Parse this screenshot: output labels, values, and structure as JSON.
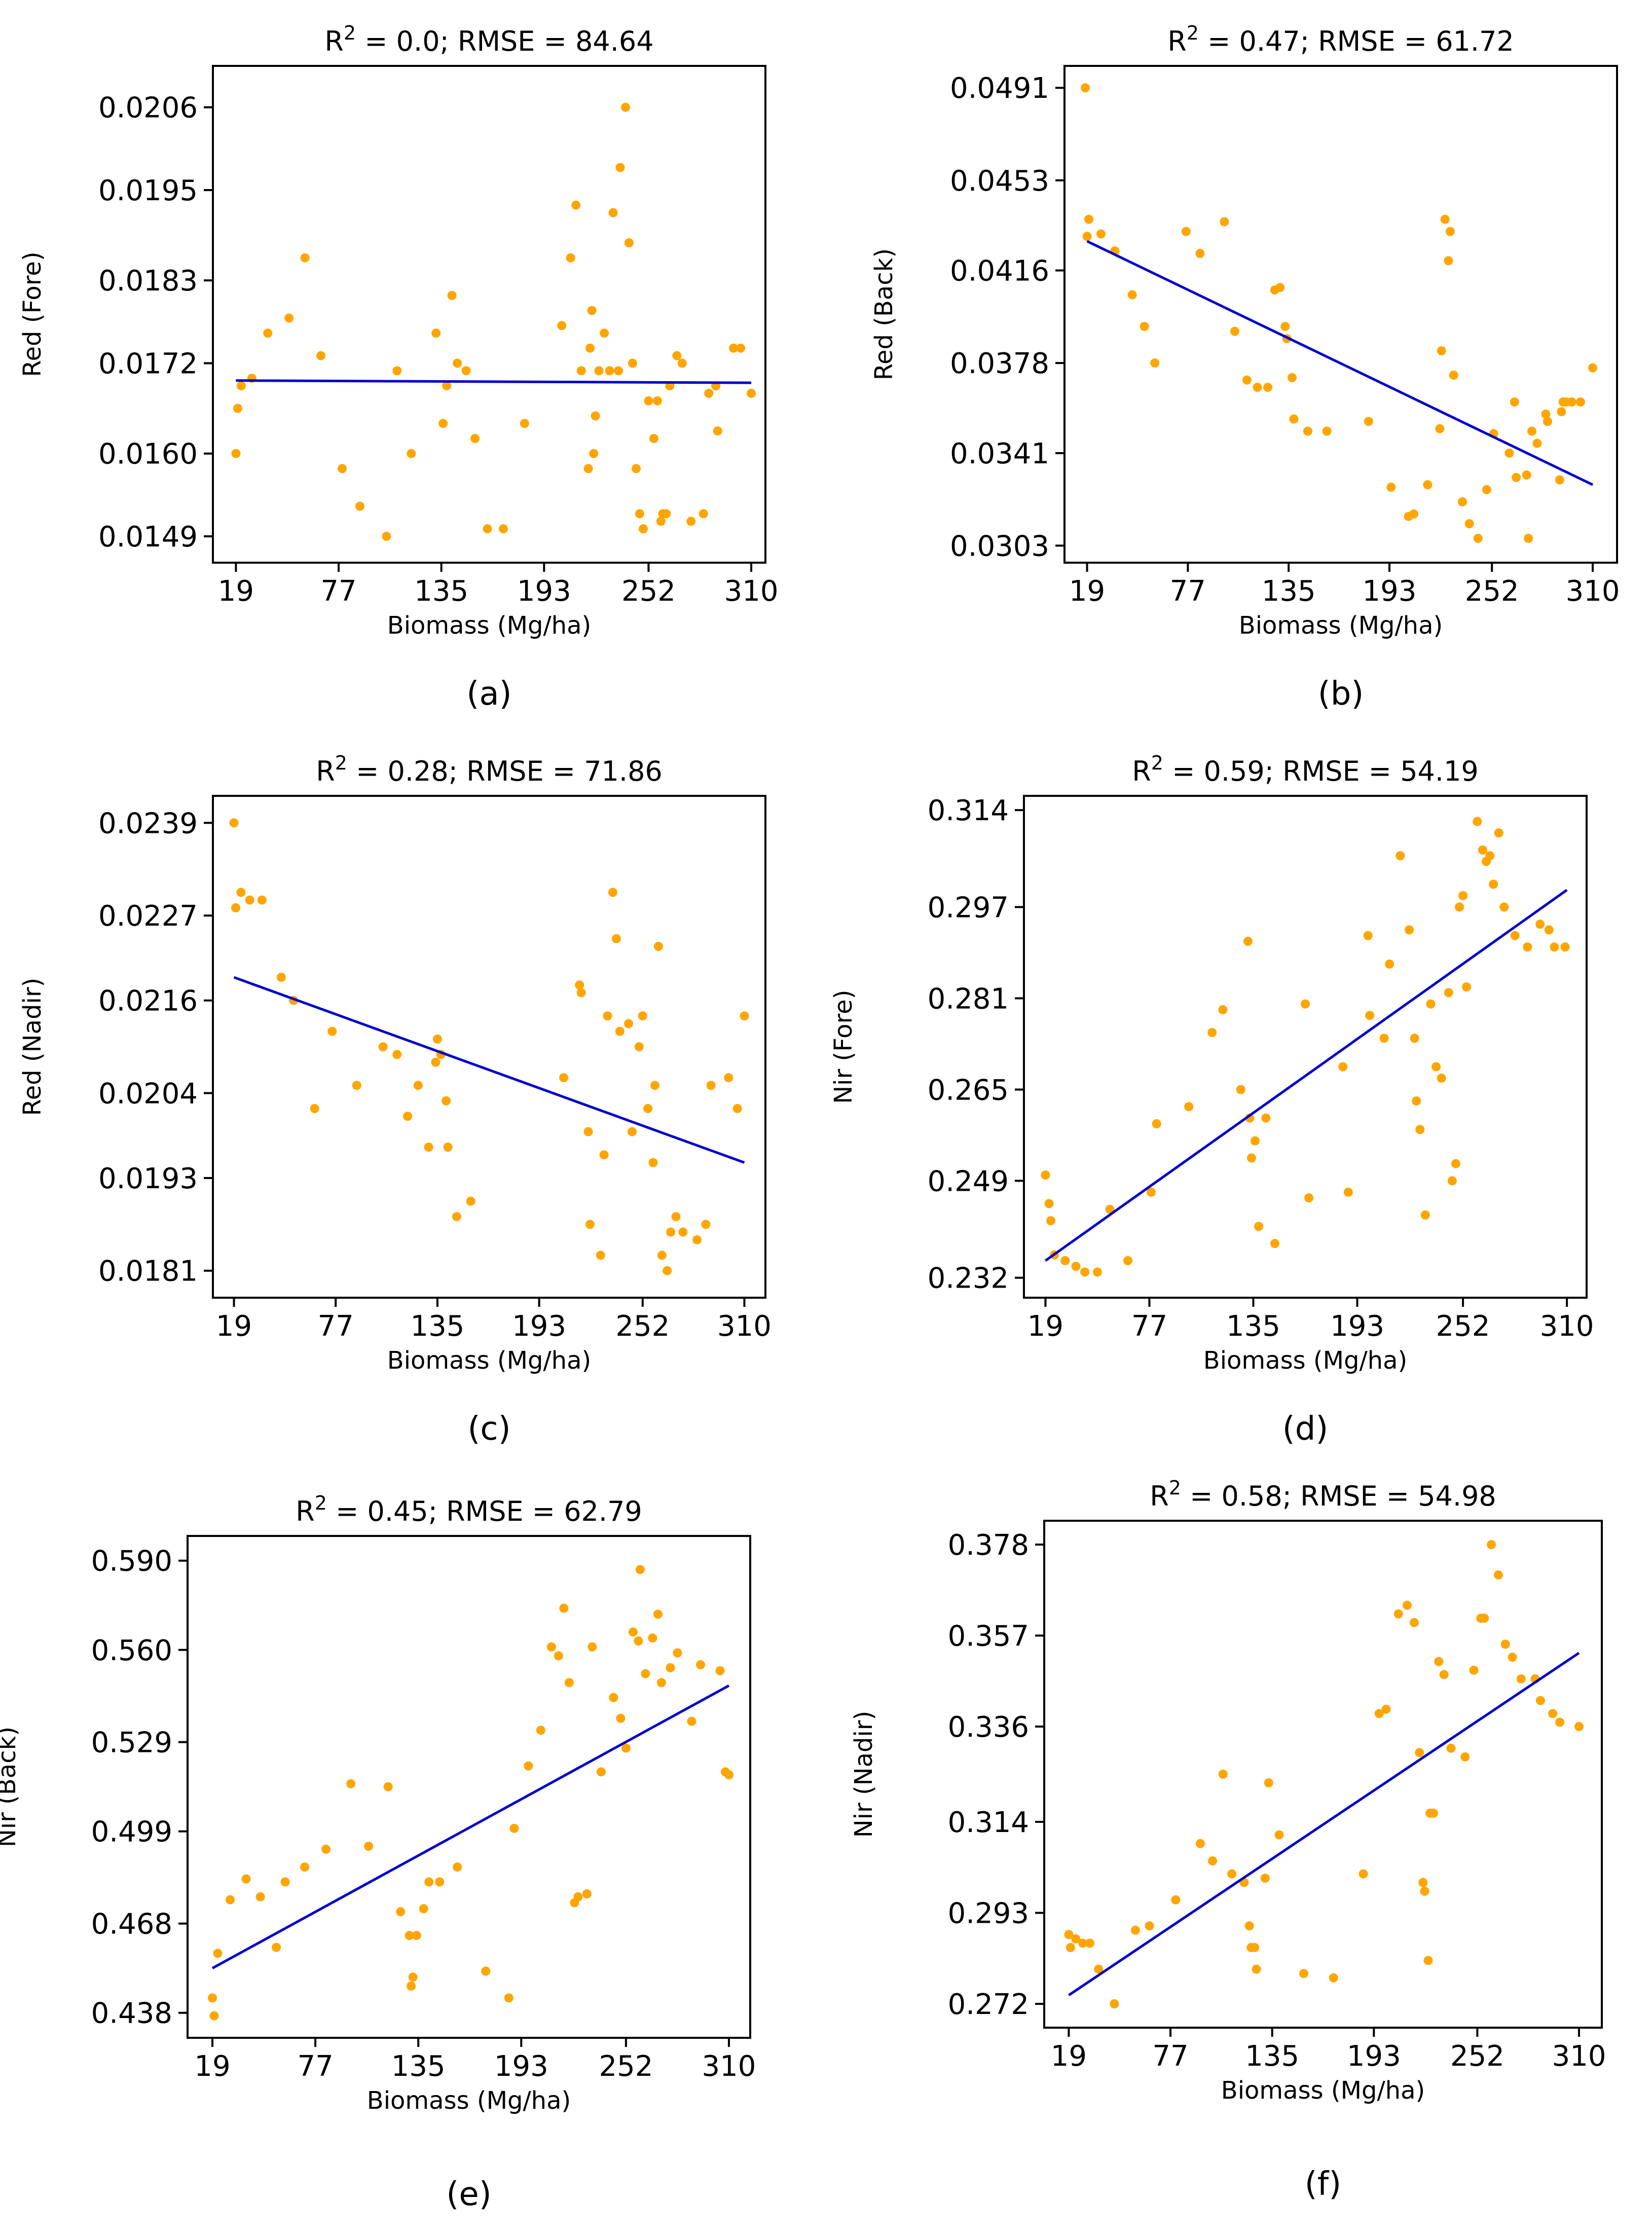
{
  "colors": {
    "point": "#FFA500",
    "fit_line": "#0000CC",
    "axes": "#000000",
    "background": "#FFFFFF"
  },
  "chart_data": [
    {
      "type": "scatter",
      "panel_label": "(a)",
      "title": {
        "r2_label": "R",
        "r2_sup": "2",
        "stats": " = 0.0; RMSE = 84.64"
      },
      "xlabel": "Biomass (Mg/ha)",
      "ylabel": "Red (Fore)",
      "xlim": [
        6,
        318
      ],
      "ylim": [
        0.01455,
        0.02115
      ],
      "xticks": [
        19,
        77,
        135,
        193,
        252,
        310
      ],
      "xtick_labels": [
        "19",
        "77",
        "135",
        "193",
        "252",
        "310"
      ],
      "yticks": [
        0.0149,
        0.016,
        0.0172,
        0.0183,
        0.0195,
        0.0206
      ],
      "ytick_labels": [
        "0.0149",
        "0.0160",
        "0.0172",
        "0.0183",
        "0.0195",
        "0.0206"
      ],
      "fit_line": {
        "x": [
          19,
          310
        ],
        "y": [
          0.01697,
          0.01694
        ]
      },
      "points": {
        "x": [
          19,
          20,
          22,
          28,
          37,
          49,
          58,
          67,
          79,
          89,
          104,
          110,
          118,
          132,
          136,
          138,
          141,
          144,
          149,
          154,
          161,
          170,
          182,
          203,
          208,
          211,
          214,
          218,
          219,
          220,
          221,
          222,
          224,
          227,
          230,
          232,
          235,
          236,
          239,
          241,
          243,
          245,
          247,
          249,
          252,
          255,
          257,
          259,
          260,
          262,
          264,
          268,
          271,
          276,
          283,
          286,
          290,
          291,
          300,
          304,
          310
        ],
        "y": [
          0.016,
          0.0166,
          0.0169,
          0.017,
          0.0176,
          0.0178,
          0.0186,
          0.0173,
          0.0158,
          0.0153,
          0.0149,
          0.0171,
          0.016,
          0.0176,
          0.0164,
          0.0169,
          0.0181,
          0.0172,
          0.0171,
          0.0162,
          0.015,
          0.015,
          0.0164,
          0.0177,
          0.0186,
          0.0193,
          0.0171,
          0.0158,
          0.0174,
          0.0179,
          0.016,
          0.0165,
          0.0171,
          0.0176,
          0.0171,
          0.0192,
          0.0171,
          0.0198,
          0.0206,
          0.0188,
          0.0172,
          0.0158,
          0.0152,
          0.015,
          0.0167,
          0.0162,
          0.0167,
          0.0151,
          0.0152,
          0.0152,
          0.0169,
          0.0173,
          0.0172,
          0.0151,
          0.0152,
          0.0168,
          0.0169,
          0.0163,
          0.0174,
          0.0174,
          0.0168
        ]
      }
    },
    {
      "type": "scatter",
      "panel_label": "(b)",
      "title": {
        "r2_label": "R",
        "r2_sup": "2",
        "stats": " = 0.47; RMSE = 61.72"
      },
      "xlabel": "Biomass (Mg/ha)",
      "ylabel": "Red (Back)",
      "xlim": [
        6,
        324
      ],
      "ylim": [
        0.0296,
        0.05
      ],
      "xticks": [
        19,
        77,
        135,
        193,
        252,
        310
      ],
      "xtick_labels": [
        "19",
        "77",
        "135",
        "193",
        "252",
        "310"
      ],
      "yticks": [
        0.0303,
        0.0341,
        0.0378,
        0.0416,
        0.0453,
        0.0491
      ],
      "ytick_labels": [
        "0.0303",
        "0.0341",
        "0.0378",
        "0.0416",
        "0.0453",
        "0.0491"
      ],
      "fit_line": {
        "x": [
          19,
          310
        ],
        "y": [
          0.0428,
          0.0328
        ]
      },
      "points": {
        "x": [
          18,
          19,
          20,
          27,
          35,
          45,
          52,
          58,
          76,
          84,
          98,
          104,
          111,
          117,
          123,
          127,
          130,
          133,
          134,
          137,
          138,
          146,
          157,
          181,
          194,
          204,
          207,
          215,
          222,
          223,
          225,
          227,
          228,
          230,
          235,
          239,
          244,
          249,
          253,
          262,
          265,
          266,
          272,
          273,
          275,
          278,
          283,
          284,
          291,
          292,
          293,
          295,
          298,
          303,
          310
        ],
        "y": [
          0.0491,
          0.043,
          0.0437,
          0.0431,
          0.0424,
          0.0406,
          0.0393,
          0.0378,
          0.0432,
          0.0423,
          0.0436,
          0.0391,
          0.0371,
          0.0368,
          0.0368,
          0.0408,
          0.0409,
          0.0393,
          0.0388,
          0.0372,
          0.0355,
          0.035,
          0.035,
          0.0354,
          0.0327,
          0.0315,
          0.0316,
          0.0328,
          0.0351,
          0.0383,
          0.0437,
          0.042,
          0.0432,
          0.0373,
          0.0321,
          0.0312,
          0.0306,
          0.0326,
          0.0349,
          0.0341,
          0.0362,
          0.0331,
          0.0332,
          0.0306,
          0.035,
          0.0345,
          0.0357,
          0.0354,
          0.033,
          0.0358,
          0.0362,
          0.0362,
          0.0362,
          0.0362,
          0.0376
        ]
      }
    },
    {
      "type": "scatter",
      "panel_label": "(c)",
      "title": {
        "r2_label": "R",
        "r2_sup": "2",
        "stats": " = 0.28; RMSE = 71.86"
      },
      "xlabel": "Biomass (Mg/ha)",
      "ylabel": "Red (Nadir)",
      "xlim": [
        7,
        322
      ],
      "ylim": [
        0.01775,
        0.02425
      ],
      "xticks": [
        19,
        77,
        135,
        193,
        252,
        310
      ],
      "xtick_labels": [
        "19",
        "77",
        "135",
        "193",
        "252",
        "310"
      ],
      "yticks": [
        0.0181,
        0.0193,
        0.0204,
        0.0216,
        0.0227,
        0.0239
      ],
      "ytick_labels": [
        "0.0181",
        "0.0193",
        "0.0204",
        "0.0216",
        "0.0227",
        "0.0239"
      ],
      "fit_line": {
        "x": [
          19,
          310
        ],
        "y": [
          0.0219,
          0.0195
        ]
      },
      "points": {
        "x": [
          19,
          20,
          23,
          28,
          35,
          46,
          53,
          65,
          75,
          89,
          104,
          112,
          118,
          124,
          130,
          134,
          135,
          137,
          140,
          141,
          146,
          154,
          207,
          216,
          217,
          221,
          222,
          228,
          230,
          232,
          235,
          237,
          239,
          244,
          246,
          250,
          252,
          255,
          258,
          259,
          261,
          263,
          266,
          268,
          271,
          275,
          283,
          288,
          291,
          301,
          306,
          310
        ],
        "y": [
          0.0239,
          0.0228,
          0.023,
          0.0229,
          0.0229,
          0.0219,
          0.0216,
          0.0202,
          0.0212,
          0.0205,
          0.021,
          0.0209,
          0.0201,
          0.0205,
          0.0197,
          0.0208,
          0.0211,
          0.0209,
          0.0203,
          0.0197,
          0.0188,
          0.019,
          0.0206,
          0.0218,
          0.0217,
          0.0199,
          0.0187,
          0.0183,
          0.0196,
          0.0214,
          0.023,
          0.0224,
          0.0212,
          0.0213,
          0.0199,
          0.021,
          0.0214,
          0.0202,
          0.0195,
          0.0205,
          0.0223,
          0.0183,
          0.0181,
          0.0186,
          0.0188,
          0.0186,
          0.0185,
          0.0187,
          0.0205,
          0.0206,
          0.0202,
          0.0214
        ]
      }
    },
    {
      "type": "scatter",
      "panel_label": "(d)",
      "title": {
        "r2_label": "R",
        "r2_sup": "2",
        "stats": " = 0.59; RMSE = 54.19"
      },
      "xlabel": "Biomass (Mg/ha)",
      "ylabel": "Nir (Fore)",
      "xlim": [
        7,
        321
      ],
      "ylim": [
        0.2285,
        0.3165
      ],
      "xticks": [
        19,
        77,
        135,
        193,
        252,
        310
      ],
      "xtick_labels": [
        "19",
        "77",
        "135",
        "193",
        "252",
        "310"
      ],
      "yticks": [
        0.232,
        0.249,
        0.265,
        0.281,
        0.297,
        0.314
      ],
      "ytick_labels": [
        "0.232",
        "0.249",
        "0.265",
        "0.281",
        "0.297",
        "0.314"
      ],
      "fit_line": {
        "x": [
          19,
          310
        ],
        "y": [
          0.235,
          0.3
        ]
      },
      "points": {
        "x": [
          19,
          21,
          22,
          24,
          30,
          36,
          41,
          48,
          55,
          65,
          78,
          81,
          99,
          112,
          118,
          128,
          132,
          133,
          134,
          136,
          138,
          142,
          147,
          164,
          166,
          185,
          188,
          199,
          200,
          208,
          211,
          217,
          222,
          225,
          226,
          228,
          231,
          234,
          237,
          240,
          244,
          246,
          248,
          250,
          252,
          254,
          260,
          263,
          265,
          267,
          269,
          272,
          275,
          281,
          288,
          295,
          300,
          303,
          309
        ],
        "y": [
          0.25,
          0.245,
          0.242,
          0.236,
          0.235,
          0.234,
          0.233,
          0.233,
          0.244,
          0.235,
          0.247,
          0.259,
          0.262,
          0.275,
          0.279,
          0.265,
          0.291,
          0.26,
          0.253,
          0.256,
          0.241,
          0.26,
          0.238,
          0.28,
          0.246,
          0.269,
          0.247,
          0.292,
          0.278,
          0.274,
          0.287,
          0.306,
          0.293,
          0.274,
          0.263,
          0.258,
          0.243,
          0.28,
          0.269,
          0.267,
          0.282,
          0.249,
          0.252,
          0.297,
          0.299,
          0.283,
          0.312,
          0.307,
          0.305,
          0.306,
          0.301,
          0.31,
          0.297,
          0.292,
          0.29,
          0.294,
          0.293,
          0.29,
          0.29
        ]
      }
    },
    {
      "type": "scatter",
      "panel_label": "(e)",
      "title": {
        "r2_label": "R",
        "r2_sup": "2",
        "stats": " = 0.45; RMSE = 62.79"
      },
      "xlabel": "Biomass (Mg/ha)",
      "ylabel": "Nir (Back)",
      "xlim": [
        5,
        322
      ],
      "ylim": [
        0.4296,
        0.5983
      ],
      "xticks": [
        19,
        77,
        135,
        193,
        252,
        310
      ],
      "xtick_labels": [
        "19",
        "77",
        "135",
        "193",
        "252",
        "310"
      ],
      "yticks": [
        0.438,
        0.468,
        0.499,
        0.529,
        0.56,
        0.59
      ],
      "ytick_labels": [
        "0.438",
        "0.468",
        "0.499",
        "0.529",
        "0.560",
        "0.590"
      ],
      "fit_line": {
        "x": [
          19,
          310
        ],
        "y": [
          0.453,
          0.548
        ]
      },
      "points": {
        "x": [
          19,
          20,
          22,
          29,
          38,
          46,
          55,
          60,
          71,
          83,
          97,
          107,
          118,
          125,
          130,
          131,
          132,
          134,
          138,
          141,
          147,
          157,
          173,
          186,
          189,
          197,
          204,
          210,
          214,
          217,
          220,
          223,
          225,
          230,
          233,
          238,
          245,
          249,
          252,
          256,
          259,
          260,
          263,
          267,
          270,
          272,
          277,
          281,
          289,
          294,
          305,
          308,
          310
        ],
        "y": [
          0.443,
          0.437,
          0.458,
          0.476,
          0.483,
          0.477,
          0.46,
          0.482,
          0.487,
          0.493,
          0.515,
          0.494,
          0.514,
          0.472,
          0.464,
          0.447,
          0.45,
          0.464,
          0.473,
          0.482,
          0.482,
          0.487,
          0.452,
          0.443,
          0.5,
          0.521,
          0.533,
          0.561,
          0.558,
          0.574,
          0.549,
          0.475,
          0.477,
          0.478,
          0.561,
          0.519,
          0.544,
          0.537,
          0.527,
          0.566,
          0.563,
          0.587,
          0.552,
          0.564,
          0.572,
          0.549,
          0.554,
          0.559,
          0.536,
          0.555,
          0.553,
          0.519,
          0.518
        ]
      }
    },
    {
      "type": "scatter",
      "panel_label": "(f)",
      "title": {
        "r2_label": "R",
        "r2_sup": "2",
        "stats": " = 0.58; RMSE = 54.98"
      },
      "xlabel": "Biomass (Mg/ha)",
      "ylabel": "Nir (Nadir)",
      "xlim": [
        5,
        323
      ],
      "ylim": [
        0.2665,
        0.3835
      ],
      "xticks": [
        19,
        77,
        135,
        193,
        252,
        310
      ],
      "xtick_labels": [
        "19",
        "77",
        "135",
        "193",
        "252",
        "310"
      ],
      "yticks": [
        0.272,
        0.293,
        0.314,
        0.336,
        0.357,
        0.378
      ],
      "ytick_labels": [
        "0.272",
        "0.293",
        "0.314",
        "0.336",
        "0.357",
        "0.378"
      ],
      "fit_line": {
        "x": [
          19,
          310
        ],
        "y": [
          0.274,
          0.353
        ]
      },
      "points": {
        "x": [
          19,
          20,
          23,
          27,
          31,
          36,
          45,
          57,
          65,
          80,
          94,
          101,
          107,
          112,
          119,
          122,
          123,
          125,
          126,
          131,
          133,
          139,
          153,
          170,
          187,
          196,
          200,
          207,
          212,
          216,
          219,
          221,
          222,
          224,
          225,
          227,
          230,
          233,
          237,
          245,
          250,
          254,
          256,
          260,
          264,
          268,
          272,
          277,
          285,
          288,
          295,
          299,
          310
        ],
        "y": [
          0.288,
          0.285,
          0.287,
          0.286,
          0.286,
          0.28,
          0.272,
          0.289,
          0.29,
          0.296,
          0.309,
          0.305,
          0.325,
          0.302,
          0.3,
          0.29,
          0.285,
          0.285,
          0.28,
          0.301,
          0.323,
          0.311,
          0.279,
          0.278,
          0.302,
          0.339,
          0.34,
          0.362,
          0.364,
          0.36,
          0.33,
          0.3,
          0.298,
          0.282,
          0.316,
          0.316,
          0.351,
          0.348,
          0.331,
          0.329,
          0.349,
          0.361,
          0.361,
          0.378,
          0.371,
          0.355,
          0.352,
          0.347,
          0.347,
          0.342,
          0.339,
          0.337,
          0.336
        ]
      }
    }
  ]
}
